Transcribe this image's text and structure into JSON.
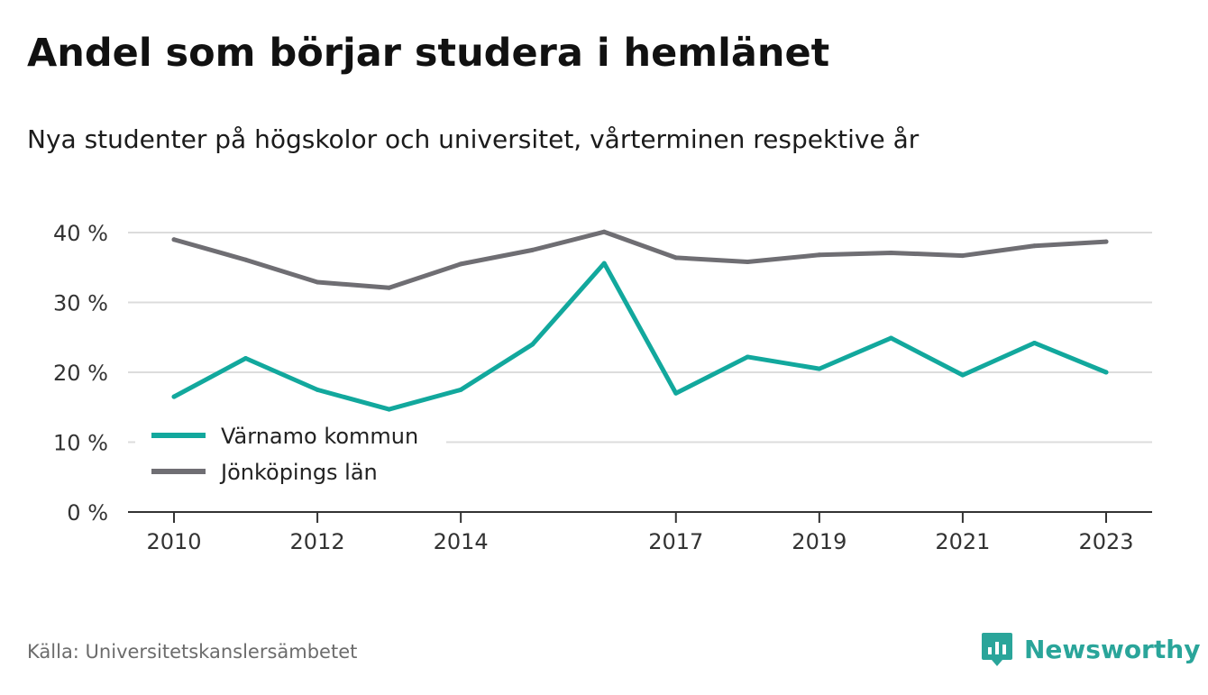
{
  "title": "Andel som börjar studera i hemlänet",
  "subtitle": "Nya studenter på högskolor och universitet, vårterminen respektive år",
  "source": "Källa: Universitetskanslersämbetet",
  "brand": {
    "name": "Newsworthy",
    "icon": "newsworthy-logo-icon",
    "color": "#2aa59a"
  },
  "chart_data": {
    "type": "line",
    "x": [
      2010,
      2011,
      2012,
      2013,
      2014,
      2015,
      2016,
      2017,
      2018,
      2019,
      2020,
      2021,
      2022,
      2023
    ],
    "x_tick_labels": [
      "2010",
      "2012",
      "2014",
      "2017",
      "2019",
      "2021",
      "2023"
    ],
    "y_tick_labels": [
      "0 %",
      "10 %",
      "20 %",
      "30 %",
      "40 %"
    ],
    "ylim": [
      0,
      40
    ],
    "grid": true,
    "legend_position": "bottom-left",
    "series": [
      {
        "name": "Värnamo kommun",
        "color": "#12a89d",
        "values": [
          16.5,
          22.0,
          17.5,
          14.7,
          17.5,
          24.0,
          35.6,
          17.0,
          22.2,
          20.5,
          24.9,
          19.6,
          24.2,
          20.0
        ]
      },
      {
        "name": "Jönköpings län",
        "color": "#6f6e73",
        "values": [
          39.0,
          36.1,
          32.9,
          32.1,
          35.5,
          37.5,
          40.1,
          36.4,
          35.8,
          36.8,
          37.1,
          36.7,
          38.1,
          38.7
        ]
      }
    ]
  }
}
